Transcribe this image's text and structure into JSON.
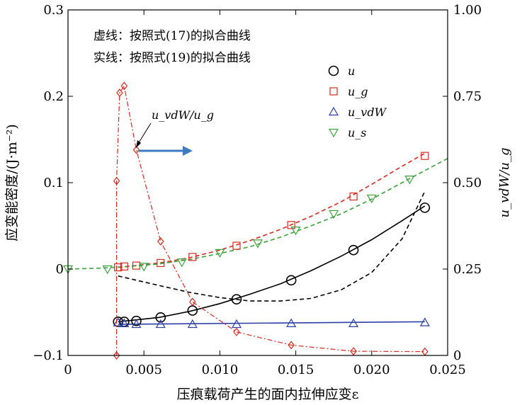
{
  "chart_data": {
    "type": "scatter",
    "xlabel": "压痕载荷产生的面内拉伸应变ε",
    "ylabel_left": "应变能密度/(J·m⁻²)",
    "ylabel_right": "u_vdW/u_g",
    "xlim": [
      0,
      0.025
    ],
    "ylim_left": [
      -0.1,
      0.3
    ],
    "ylim_right": [
      0,
      1.0
    ],
    "x_ticks": [
      "0",
      "0.005",
      "0.010",
      "0.015",
      "0.020",
      "0.025"
    ],
    "y_ticks_left": [
      "−0.1",
      "0",
      "0.1",
      "0.2",
      "0.3"
    ],
    "y_ticks_right": [
      "0",
      "0.25",
      "0.50",
      "0.75",
      "1.00"
    ],
    "grid": false,
    "legend_position": "top-right",
    "annotations": {
      "dashed_note": "虚线：按照式(17)的拟合曲线",
      "solid_note": "实线：按照式(19)的拟合曲线",
      "ratio_label": "u_vdW/u_g"
    },
    "series": [
      {
        "name": "u",
        "color": "#000000",
        "marker": "circle",
        "x": [
          0.0033,
          0.0037,
          0.0045,
          0.0061,
          0.0082,
          0.0111,
          0.0147,
          0.0188,
          0.0235
        ],
        "y": [
          -0.061,
          -0.061,
          -0.06,
          -0.056,
          -0.048,
          -0.035,
          -0.013,
          0.022,
          0.071
        ]
      },
      {
        "name": "u_g",
        "color": "#d62a1e",
        "marker": "square",
        "x": [
          0.0033,
          0.0037,
          0.0045,
          0.0061,
          0.0082,
          0.0111,
          0.0147,
          0.0188,
          0.0235
        ],
        "y": [
          0.002,
          0.003,
          0.004,
          0.007,
          0.014,
          0.027,
          0.051,
          0.084,
          0.131
        ]
      },
      {
        "name": "u_vdW",
        "color": "#2b3fa8",
        "marker": "triangle-up",
        "x": [
          0.0033,
          0.0037,
          0.0045,
          0.0061,
          0.0082,
          0.0111,
          0.0147,
          0.0188,
          0.0235
        ],
        "y": [
          -0.062,
          -0.063,
          -0.064,
          -0.064,
          -0.064,
          -0.064,
          -0.063,
          -0.063,
          -0.062
        ]
      },
      {
        "name": "u_s",
        "color": "#3aa23a",
        "marker": "triangle-down",
        "x": [
          0.0,
          0.0026,
          0.005,
          0.0075,
          0.01,
          0.0125,
          0.015,
          0.0175,
          0.02,
          0.0225
        ],
        "y": [
          0.0,
          0.0,
          0.003,
          0.008,
          0.019,
          0.03,
          0.045,
          0.064,
          0.082,
          0.104
        ]
      },
      {
        "name": "u_vdW/u_g",
        "color": "#d62a1e",
        "marker": "diamond",
        "axis": "right",
        "x": [
          0.0032,
          0.0032,
          0.0034,
          0.0037,
          0.0045,
          0.0061,
          0.0082,
          0.0111,
          0.0147,
          0.0188,
          0.0235
        ],
        "y": [
          0.0,
          0.505,
          0.76,
          0.78,
          0.595,
          0.33,
          0.155,
          0.068,
          0.03,
          0.012,
          0.011
        ]
      }
    ],
    "fit_curves": [
      {
        "style": "solid",
        "color": "#000000",
        "x": [
          0.0033,
          0.006,
          0.008,
          0.01,
          0.012,
          0.014,
          0.016,
          0.018,
          0.02,
          0.022,
          0.0235
        ],
        "y": [
          -0.061,
          -0.056,
          -0.049,
          -0.04,
          -0.029,
          -0.017,
          -0.002,
          0.015,
          0.034,
          0.056,
          0.073
        ]
      },
      {
        "style": "dashed",
        "color": "#000000",
        "x": [
          0.0033,
          0.006,
          0.008,
          0.01,
          0.012,
          0.014,
          0.016,
          0.018,
          0.02,
          0.022,
          0.0235
        ],
        "y": [
          -0.008,
          -0.019,
          -0.027,
          -0.033,
          -0.037,
          -0.037,
          -0.034,
          -0.024,
          -0.004,
          0.035,
          0.09
        ]
      },
      {
        "style": "dashed",
        "color": "#d62a1e",
        "x": [
          0.0033,
          0.006,
          0.008,
          0.01,
          0.012,
          0.014,
          0.016,
          0.018,
          0.02,
          0.022,
          0.0235
        ],
        "y": [
          0.002,
          0.007,
          0.013,
          0.022,
          0.033,
          0.046,
          0.061,
          0.078,
          0.098,
          0.119,
          0.134
        ]
      },
      {
        "style": "dashed",
        "color": "#3aa23a",
        "x": [
          0.0,
          0.002,
          0.004,
          0.006,
          0.008,
          0.01,
          0.012,
          0.014,
          0.016,
          0.018,
          0.02,
          0.022,
          0.025
        ],
        "y": [
          0.0,
          0.001,
          0.003,
          0.006,
          0.011,
          0.018,
          0.026,
          0.037,
          0.05,
          0.064,
          0.081,
          0.1,
          0.128
        ]
      },
      {
        "style": "solid",
        "color": "#2b3fa8",
        "x": [
          0.0033,
          0.0235
        ],
        "y": [
          -0.064,
          -0.061
        ]
      }
    ]
  }
}
